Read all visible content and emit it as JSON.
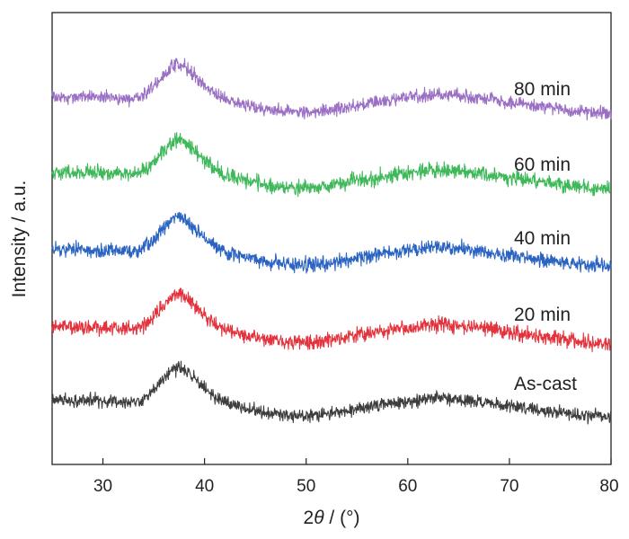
{
  "chart_data": {
    "type": "line",
    "xlabel_parts": {
      "prefix": "2",
      "symbol": "θ",
      "suffix": " / (°)"
    },
    "ylabel": "Intensity / a.u.",
    "xlim": [
      25,
      80
    ],
    "xticks": [
      30,
      40,
      50,
      60,
      70,
      80
    ],
    "y_ticks_shown": false,
    "grid": false,
    "legend": "none; series labels at right end of each trace",
    "x": [
      25,
      27,
      29,
      31,
      33,
      34,
      35,
      36,
      37,
      37.5,
      38,
      39,
      40,
      41,
      42,
      44,
      46,
      48,
      50,
      52,
      54,
      56,
      58,
      60,
      62,
      63.5,
      65,
      67,
      70,
      73,
      76,
      80
    ],
    "series": [
      {
        "name": "As-cast",
        "color": "#3d3d3d",
        "values": [
          0.38,
          0.37,
          0.37,
          0.36,
          0.35,
          0.38,
          0.49,
          0.63,
          0.74,
          0.76,
          0.73,
          0.62,
          0.5,
          0.41,
          0.34,
          0.28,
          0.22,
          0.2,
          0.19,
          0.21,
          0.25,
          0.29,
          0.33,
          0.36,
          0.39,
          0.4,
          0.38,
          0.36,
          0.31,
          0.26,
          0.21,
          0.17
        ]
      },
      {
        "name": "20 min",
        "color": "#e3333d",
        "values": [
          0.38,
          0.37,
          0.37,
          0.36,
          0.35,
          0.38,
          0.49,
          0.63,
          0.74,
          0.76,
          0.73,
          0.62,
          0.5,
          0.41,
          0.34,
          0.28,
          0.22,
          0.2,
          0.19,
          0.21,
          0.25,
          0.29,
          0.33,
          0.36,
          0.39,
          0.4,
          0.38,
          0.36,
          0.31,
          0.26,
          0.21,
          0.17
        ]
      },
      {
        "name": "40 min",
        "color": "#2a63c2",
        "values": [
          0.38,
          0.37,
          0.37,
          0.36,
          0.35,
          0.38,
          0.49,
          0.63,
          0.74,
          0.76,
          0.73,
          0.62,
          0.5,
          0.41,
          0.34,
          0.28,
          0.22,
          0.2,
          0.19,
          0.21,
          0.25,
          0.29,
          0.33,
          0.36,
          0.39,
          0.4,
          0.38,
          0.36,
          0.31,
          0.26,
          0.21,
          0.17
        ]
      },
      {
        "name": "60 min",
        "color": "#3fb85a",
        "values": [
          0.38,
          0.37,
          0.37,
          0.36,
          0.35,
          0.38,
          0.49,
          0.63,
          0.74,
          0.76,
          0.73,
          0.62,
          0.5,
          0.41,
          0.34,
          0.28,
          0.22,
          0.2,
          0.19,
          0.21,
          0.25,
          0.29,
          0.33,
          0.36,
          0.39,
          0.4,
          0.38,
          0.36,
          0.31,
          0.26,
          0.21,
          0.17
        ]
      },
      {
        "name": "80 min",
        "color": "#9a6fc4",
        "values": [
          0.38,
          0.37,
          0.37,
          0.36,
          0.35,
          0.38,
          0.49,
          0.63,
          0.74,
          0.76,
          0.73,
          0.62,
          0.5,
          0.41,
          0.34,
          0.28,
          0.22,
          0.2,
          0.19,
          0.21,
          0.25,
          0.29,
          0.33,
          0.36,
          0.39,
          0.4,
          0.38,
          0.36,
          0.31,
          0.26,
          0.21,
          0.17
        ]
      }
    ]
  }
}
